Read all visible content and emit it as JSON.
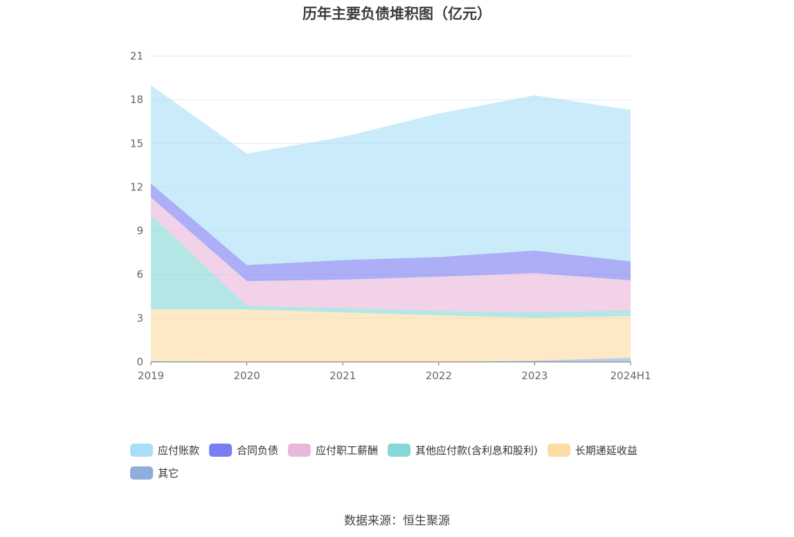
{
  "chart_data": {
    "type": "area",
    "stacked": true,
    "title": "历年主要负债堆积图（亿元）",
    "x": [
      "2019",
      "2020",
      "2021",
      "2022",
      "2023",
      "2024H1"
    ],
    "y_ticks": [
      "0",
      "3",
      "6",
      "9",
      "12",
      "15",
      "18",
      "21"
    ],
    "ylim": [
      0,
      21
    ],
    "grid": true,
    "legend_position": "bottom",
    "series": [
      {
        "name": "其它",
        "color": "#8eaedc",
        "values": [
          0.05,
          0.0,
          0.0,
          0.0,
          0.08,
          0.28
        ]
      },
      {
        "name": "长期递延收益",
        "color": "#fcdca2",
        "values": [
          3.55,
          3.6,
          3.4,
          3.2,
          2.95,
          2.87
        ]
      },
      {
        "name": "其他应付款(含利息和股利)",
        "color": "#86d7d6",
        "values": [
          6.5,
          0.25,
          0.3,
          0.3,
          0.37,
          0.4
        ]
      },
      {
        "name": "应付职工薪酬",
        "color": "#e8b7da",
        "values": [
          1.2,
          1.7,
          1.95,
          2.35,
          2.7,
          2.05
        ]
      },
      {
        "name": "合同负债",
        "color": "#7b7ef0",
        "values": [
          0.95,
          1.1,
          1.35,
          1.35,
          1.55,
          1.3
        ]
      },
      {
        "name": "应付账款",
        "color": "#a9def7",
        "values": [
          6.75,
          7.65,
          8.45,
          9.85,
          10.65,
          10.4
        ]
      }
    ]
  },
  "legend": {
    "items": [
      {
        "label": "应付账款",
        "color": "#a9def7"
      },
      {
        "label": "合同负债",
        "color": "#7b7ef0"
      },
      {
        "label": "应付职工薪酬",
        "color": "#e8b7da"
      },
      {
        "label": "其他应付款(含利息和股利)",
        "color": "#86d7d6"
      },
      {
        "label": "长期递延收益",
        "color": "#fcdca2"
      },
      {
        "label": "其它",
        "color": "#8eaedc"
      }
    ]
  },
  "source": "数据来源：恒生聚源"
}
